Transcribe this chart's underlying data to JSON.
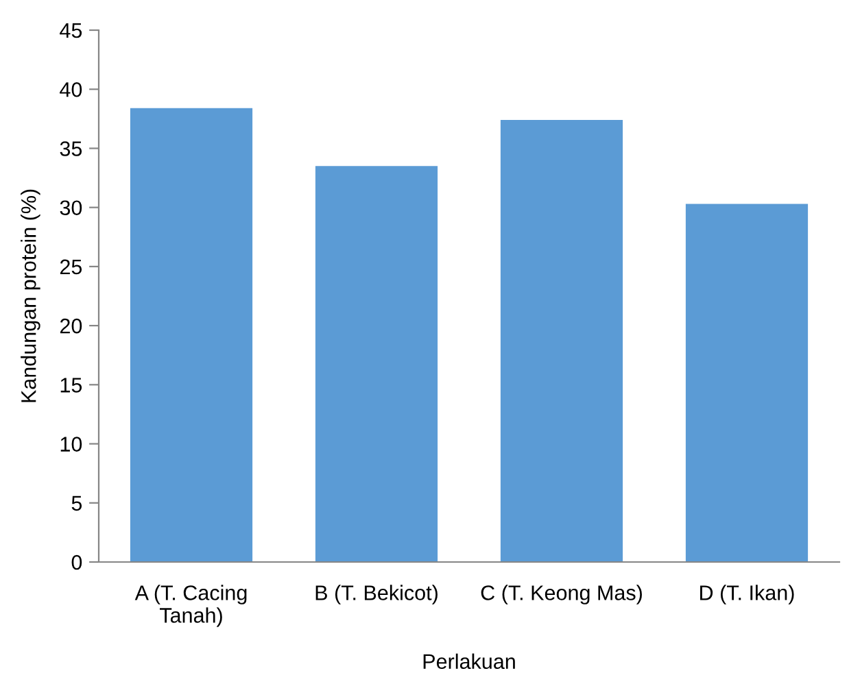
{
  "chart_data": {
    "type": "bar",
    "xlabel": "Perlakuan",
    "ylabel": "Kandungan protein (%)",
    "categories": [
      "A (T. Cacing\nTanah)",
      "B (T. Bekicot)",
      "C (T. Keong Mas)",
      "D (T. Ikan)"
    ],
    "values": [
      38.4,
      33.5,
      37.4,
      30.3
    ],
    "color": "#5b9bd5",
    "ylim": [
      0,
      45
    ],
    "yticks": [
      0,
      5,
      10,
      15,
      20,
      25,
      30,
      35,
      40,
      45
    ],
    "grid": false,
    "legend": false
  }
}
